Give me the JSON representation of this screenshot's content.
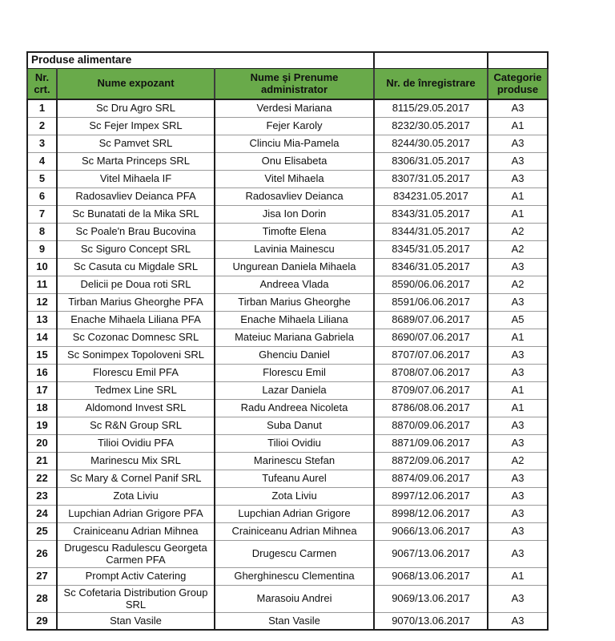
{
  "page": {
    "title": "Produse alimentare"
  },
  "colors": {
    "header_bg": "#69aa4a",
    "grid_dark": "#1f1f1f",
    "grid_light": "#9a9a9a"
  },
  "table": {
    "headers": [
      "Nr. crt.",
      "Nume expozant",
      "Nume şi Prenume administrator",
      "Nr. de înregistrare",
      "Categorie produse"
    ],
    "rows": [
      [
        "1",
        "Sc Dru Agro SRL",
        "Verdesi Mariana",
        "8115/29.05.2017",
        "A3"
      ],
      [
        "2",
        "Sc Fejer Impex SRL",
        "Fejer Karoly",
        "8232/30.05.2017",
        "A1"
      ],
      [
        "3",
        "Sc Pamvet SRL",
        "Clinciu Mia-Pamela",
        "8244/30.05.2017",
        "A3"
      ],
      [
        "4",
        "Sc Marta Princeps SRL",
        "Onu Elisabeta",
        "8306/31.05.2017",
        "A3"
      ],
      [
        "5",
        "Vitel Mihaela IF",
        "Vitel Mihaela",
        "8307/31.05.2017",
        "A3"
      ],
      [
        "6",
        "Radosavliev Deianca PFA",
        "Radosavliev Deianca",
        "834231.05.2017",
        "A1"
      ],
      [
        "7",
        "Sc Bunatati de la Mika SRL",
        "Jisa Ion Dorin",
        "8343/31.05.2017",
        "A1"
      ],
      [
        "8",
        "Sc Poale'n Brau Bucovina",
        "Timofte Elena",
        "8344/31.05.2017",
        "A2"
      ],
      [
        "9",
        "Sc Siguro Concept SRL",
        "Lavinia Mainescu",
        "8345/31.05.2017",
        "A2"
      ],
      [
        "10",
        "Sc Casuta cu Migdale SRL",
        "Ungurean Daniela Mihaela",
        "8346/31.05.2017",
        "A3"
      ],
      [
        "11",
        "Delicii pe Doua roti SRL",
        "Andreea Vlada",
        "8590/06.06.2017",
        "A2"
      ],
      [
        "12",
        "Tirban Marius Gheorghe PFA",
        "Tirban Marius Gheorghe",
        "8591/06.06.2017",
        "A3"
      ],
      [
        "13",
        "Enache Mihaela Liliana PFA",
        "Enache Mihaela Liliana",
        "8689/07.06.2017",
        "A5"
      ],
      [
        "14",
        "Sc Cozonac Domnesc SRL",
        "Mateiuc Mariana Gabriela",
        "8690/07.06.2017",
        "A1"
      ],
      [
        "15",
        "Sc Sonimpex Topoloveni SRL",
        "Ghenciu Daniel",
        "8707/07.06.2017",
        "A3"
      ],
      [
        "16",
        "Florescu Emil PFA",
        "Florescu Emil",
        "8708/07.06.2017",
        "A3"
      ],
      [
        "17",
        "Tedmex Line SRL",
        "Lazar Daniela",
        "8709/07.06.2017",
        "A1"
      ],
      [
        "18",
        "Aldomond Invest SRL",
        "Radu Andreea Nicoleta",
        "8786/08.06.2017",
        "A1"
      ],
      [
        "19",
        "Sc R&N Group SRL",
        "Suba Danut",
        "8870/09.06.2017",
        "A3"
      ],
      [
        "20",
        "Tilioi Ovidiu PFA",
        "Tilioi Ovidiu",
        "8871/09.06.2017",
        "A3"
      ],
      [
        "21",
        "Marinescu Mix SRL",
        "Marinescu Stefan",
        "8872/09.06.2017",
        "A2"
      ],
      [
        "22",
        "Sc Mary & Cornel Panif SRL",
        "Tufeanu Aurel",
        "8874/09.06.2017",
        "A3"
      ],
      [
        "23",
        "Zota Liviu",
        "Zota Liviu",
        "8997/12.06.2017",
        "A3"
      ],
      [
        "24",
        "Lupchian Adrian Grigore PFA",
        "Lupchian Adrian Grigore",
        "8998/12.06.2017",
        "A3"
      ],
      [
        "25",
        "Crainiceanu Adrian Mihnea",
        "Crainiceanu Adrian Mihnea",
        "9066/13.06.2017",
        "A3"
      ],
      [
        "26",
        "Drugescu Radulescu Georgeta Carmen PFA",
        "Drugescu Carmen",
        "9067/13.06.2017",
        "A3"
      ],
      [
        "27",
        "Prompt Activ Catering",
        "Gherghinescu Clementina",
        "9068/13.06.2017",
        "A1"
      ],
      [
        "28",
        "Sc Cofetaria Distribution Group SRL",
        "Marasoiu Andrei",
        "9069/13.06.2017",
        "A3"
      ],
      [
        "29",
        "Stan Vasile",
        "Stan Vasile",
        "9070/13.06.2017",
        "A3"
      ]
    ]
  }
}
